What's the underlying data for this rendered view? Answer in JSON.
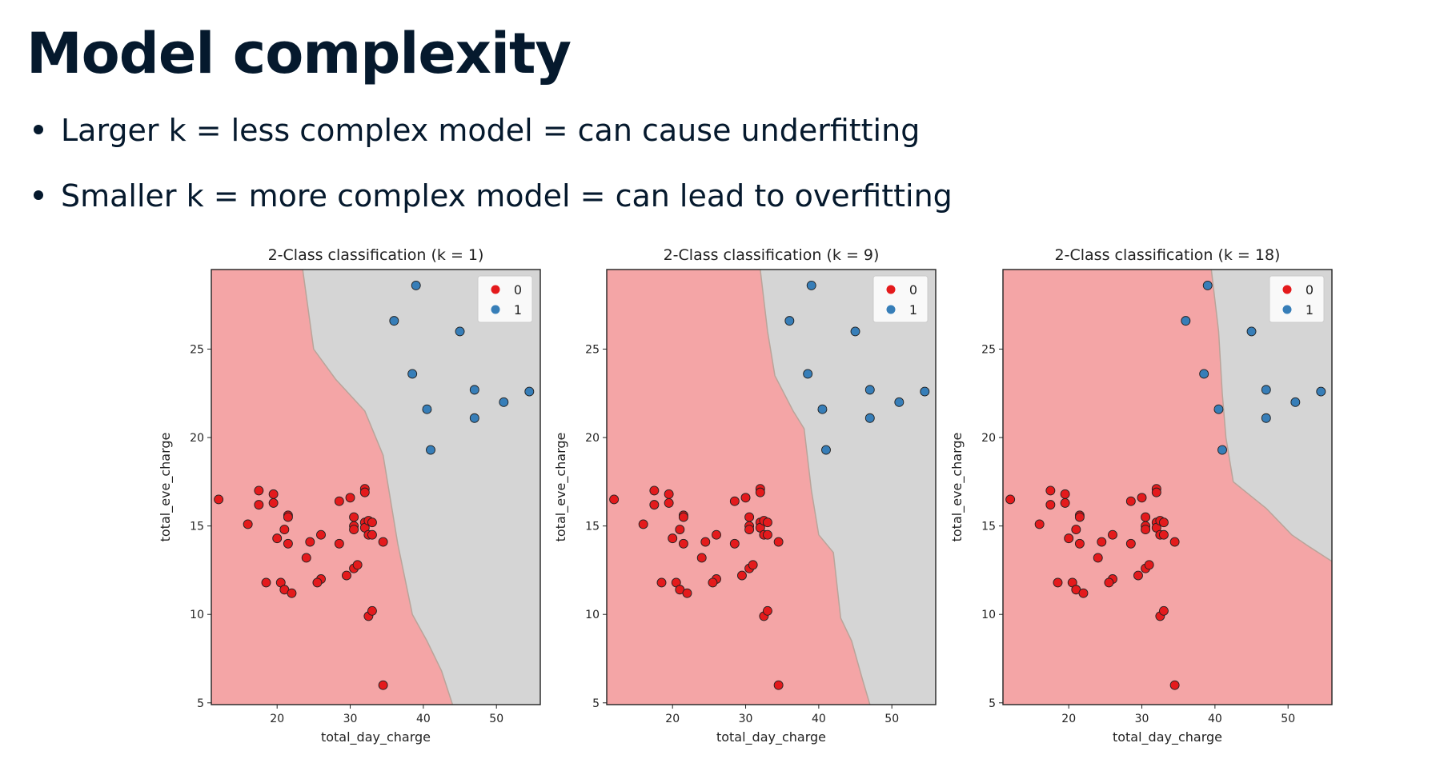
{
  "slide": {
    "title": "Model complexity",
    "bullets": [
      "Larger k = less complex model = can cause underfitting",
      "Smaller k = more complex model = can lead to overfitting"
    ]
  },
  "colors": {
    "class0_region": "#f4a5a6",
    "class1_region": "#d5d5d5",
    "class0_point": "#e41a1c",
    "class1_point": "#377eb8",
    "boundary": "#b9a49a",
    "text": "#05192d"
  },
  "chart_data": [
    {
      "type": "scatter",
      "title": "2-Class classification (k = 1)",
      "xlabel": "total_day_charge",
      "ylabel": "total_eve_charge",
      "xlim": [
        11,
        56
      ],
      "ylim": [
        4.9,
        29.5
      ],
      "xticks": [
        20,
        30,
        40,
        50
      ],
      "yticks": [
        5,
        10,
        15,
        20,
        25
      ],
      "grid": false,
      "legend": {
        "placement": "top-right",
        "entries": [
          "0",
          "1"
        ]
      },
      "decision_boundary": [
        [
          23.5,
          29.5
        ],
        [
          25,
          25
        ],
        [
          28,
          23.3
        ],
        [
          32,
          21.5
        ],
        [
          34.5,
          19
        ],
        [
          36.5,
          14
        ],
        [
          38.5,
          10
        ],
        [
          40.5,
          8.5
        ],
        [
          42.5,
          6.8
        ],
        [
          44,
          4.9
        ]
      ],
      "series": [
        {
          "name": "0",
          "points": [
            [
              12,
              16.5
            ],
            [
              16,
              15.1
            ],
            [
              17.5,
              17
            ],
            [
              17.5,
              16.2
            ],
            [
              18.5,
              11.8
            ],
            [
              19.5,
              16.8
            ],
            [
              19.5,
              16.3
            ],
            [
              20,
              14.3
            ],
            [
              20.5,
              11.8
            ],
            [
              21,
              11.4
            ],
            [
              21,
              14.8
            ],
            [
              21.5,
              15.6
            ],
            [
              21.5,
              15.5
            ],
            [
              21.5,
              14
            ],
            [
              22,
              11.2
            ],
            [
              24,
              13.2
            ],
            [
              24.5,
              14.1
            ],
            [
              26,
              14.5
            ],
            [
              26,
              12
            ],
            [
              25.5,
              11.8
            ],
            [
              28.5,
              16.4
            ],
            [
              28.5,
              14
            ],
            [
              29.5,
              12.2
            ],
            [
              30,
              16.6
            ],
            [
              30.5,
              15.5
            ],
            [
              30.5,
              12.6
            ],
            [
              30.5,
              15
            ],
            [
              30.5,
              14.8
            ],
            [
              31,
              12.8
            ],
            [
              32,
              17.1
            ],
            [
              32,
              16.9
            ],
            [
              32,
              15.2
            ],
            [
              32,
              14.9
            ],
            [
              32.5,
              15.3
            ],
            [
              32.5,
              14.5
            ],
            [
              32.5,
              9.9
            ],
            [
              33,
              15.2
            ],
            [
              33,
              14.5
            ],
            [
              33,
              10.2
            ],
            [
              34.5,
              14.1
            ],
            [
              34.5,
              6
            ]
          ]
        },
        {
          "name": "1",
          "points": [
            [
              36,
              26.6
            ],
            [
              39,
              28.6
            ],
            [
              38.5,
              23.6
            ],
            [
              40.5,
              21.6
            ],
            [
              41,
              19.3
            ],
            [
              45,
              26
            ],
            [
              47,
              22.7
            ],
            [
              47,
              21.1
            ],
            [
              51,
              22
            ],
            [
              54.5,
              22.6
            ]
          ]
        }
      ]
    },
    {
      "type": "scatter",
      "title": "2-Class classification (k = 9)",
      "xlabel": "total_day_charge",
      "ylabel": "total_eve_charge",
      "xlim": [
        11,
        56
      ],
      "ylim": [
        4.9,
        29.5
      ],
      "xticks": [
        20,
        30,
        40,
        50
      ],
      "yticks": [
        5,
        10,
        15,
        20,
        25
      ],
      "grid": false,
      "legend": {
        "placement": "top-right",
        "entries": [
          "0",
          "1"
        ]
      },
      "decision_boundary": [
        [
          32,
          29.5
        ],
        [
          33,
          26
        ],
        [
          34,
          23.5
        ],
        [
          36.5,
          21.5
        ],
        [
          38,
          20.5
        ],
        [
          39,
          17
        ],
        [
          40,
          14.5
        ],
        [
          42,
          13.5
        ],
        [
          43,
          9.8
        ],
        [
          44.5,
          8.5
        ],
        [
          46,
          6.3
        ],
        [
          47,
          4.9
        ]
      ],
      "series": [
        {
          "name": "0",
          "points": [
            [
              12,
              16.5
            ],
            [
              16,
              15.1
            ],
            [
              17.5,
              17
            ],
            [
              17.5,
              16.2
            ],
            [
              18.5,
              11.8
            ],
            [
              19.5,
              16.8
            ],
            [
              19.5,
              16.3
            ],
            [
              20,
              14.3
            ],
            [
              20.5,
              11.8
            ],
            [
              21,
              11.4
            ],
            [
              21,
              14.8
            ],
            [
              21.5,
              15.6
            ],
            [
              21.5,
              15.5
            ],
            [
              21.5,
              14
            ],
            [
              22,
              11.2
            ],
            [
              24,
              13.2
            ],
            [
              24.5,
              14.1
            ],
            [
              26,
              14.5
            ],
            [
              26,
              12
            ],
            [
              25.5,
              11.8
            ],
            [
              28.5,
              16.4
            ],
            [
              28.5,
              14
            ],
            [
              29.5,
              12.2
            ],
            [
              30,
              16.6
            ],
            [
              30.5,
              15.5
            ],
            [
              30.5,
              12.6
            ],
            [
              30.5,
              15
            ],
            [
              30.5,
              14.8
            ],
            [
              31,
              12.8
            ],
            [
              32,
              17.1
            ],
            [
              32,
              16.9
            ],
            [
              32,
              15.2
            ],
            [
              32,
              14.9
            ],
            [
              32.5,
              15.3
            ],
            [
              32.5,
              14.5
            ],
            [
              32.5,
              9.9
            ],
            [
              33,
              15.2
            ],
            [
              33,
              14.5
            ],
            [
              33,
              10.2
            ],
            [
              34.5,
              14.1
            ],
            [
              34.5,
              6
            ]
          ]
        },
        {
          "name": "1",
          "points": [
            [
              36,
              26.6
            ],
            [
              39,
              28.6
            ],
            [
              38.5,
              23.6
            ],
            [
              40.5,
              21.6
            ],
            [
              41,
              19.3
            ],
            [
              45,
              26
            ],
            [
              47,
              22.7
            ],
            [
              47,
              21.1
            ],
            [
              51,
              22
            ],
            [
              54.5,
              22.6
            ]
          ]
        }
      ]
    },
    {
      "type": "scatter",
      "title": "2-Class classification (k = 18)",
      "xlabel": "total_day_charge",
      "ylabel": "total_eve_charge",
      "xlim": [
        11,
        56
      ],
      "ylim": [
        4.9,
        29.5
      ],
      "xticks": [
        20,
        30,
        40,
        50
      ],
      "yticks": [
        5,
        10,
        15,
        20,
        25
      ],
      "grid": false,
      "legend": {
        "placement": "top-right",
        "entries": [
          "0",
          "1"
        ]
      },
      "decision_boundary": [
        [
          39.5,
          29.5
        ],
        [
          40.5,
          26
        ],
        [
          41,
          22.5
        ],
        [
          41.5,
          20
        ],
        [
          42.5,
          17.5
        ],
        [
          44,
          17
        ],
        [
          47,
          16
        ],
        [
          50.5,
          14.5
        ],
        [
          53,
          13.8
        ],
        [
          56,
          13
        ]
      ],
      "series": [
        {
          "name": "0",
          "points": [
            [
              12,
              16.5
            ],
            [
              16,
              15.1
            ],
            [
              17.5,
              17
            ],
            [
              17.5,
              16.2
            ],
            [
              18.5,
              11.8
            ],
            [
              19.5,
              16.8
            ],
            [
              19.5,
              16.3
            ],
            [
              20,
              14.3
            ],
            [
              20.5,
              11.8
            ],
            [
              21,
              11.4
            ],
            [
              21,
              14.8
            ],
            [
              21.5,
              15.6
            ],
            [
              21.5,
              15.5
            ],
            [
              21.5,
              14
            ],
            [
              22,
              11.2
            ],
            [
              24,
              13.2
            ],
            [
              24.5,
              14.1
            ],
            [
              26,
              14.5
            ],
            [
              26,
              12
            ],
            [
              25.5,
              11.8
            ],
            [
              28.5,
              16.4
            ],
            [
              28.5,
              14
            ],
            [
              29.5,
              12.2
            ],
            [
              30,
              16.6
            ],
            [
              30.5,
              15.5
            ],
            [
              30.5,
              12.6
            ],
            [
              30.5,
              15
            ],
            [
              30.5,
              14.8
            ],
            [
              31,
              12.8
            ],
            [
              32,
              17.1
            ],
            [
              32,
              16.9
            ],
            [
              32,
              15.2
            ],
            [
              32,
              14.9
            ],
            [
              32.5,
              15.3
            ],
            [
              32.5,
              14.5
            ],
            [
              32.5,
              9.9
            ],
            [
              33,
              15.2
            ],
            [
              33,
              14.5
            ],
            [
              33,
              10.2
            ],
            [
              34.5,
              14.1
            ],
            [
              34.5,
              6
            ]
          ]
        },
        {
          "name": "1",
          "points": [
            [
              36,
              26.6
            ],
            [
              39,
              28.6
            ],
            [
              38.5,
              23.6
            ],
            [
              40.5,
              21.6
            ],
            [
              41,
              19.3
            ],
            [
              45,
              26
            ],
            [
              47,
              22.7
            ],
            [
              47,
              21.1
            ],
            [
              51,
              22
            ],
            [
              54.5,
              22.6
            ]
          ]
        }
      ]
    }
  ]
}
